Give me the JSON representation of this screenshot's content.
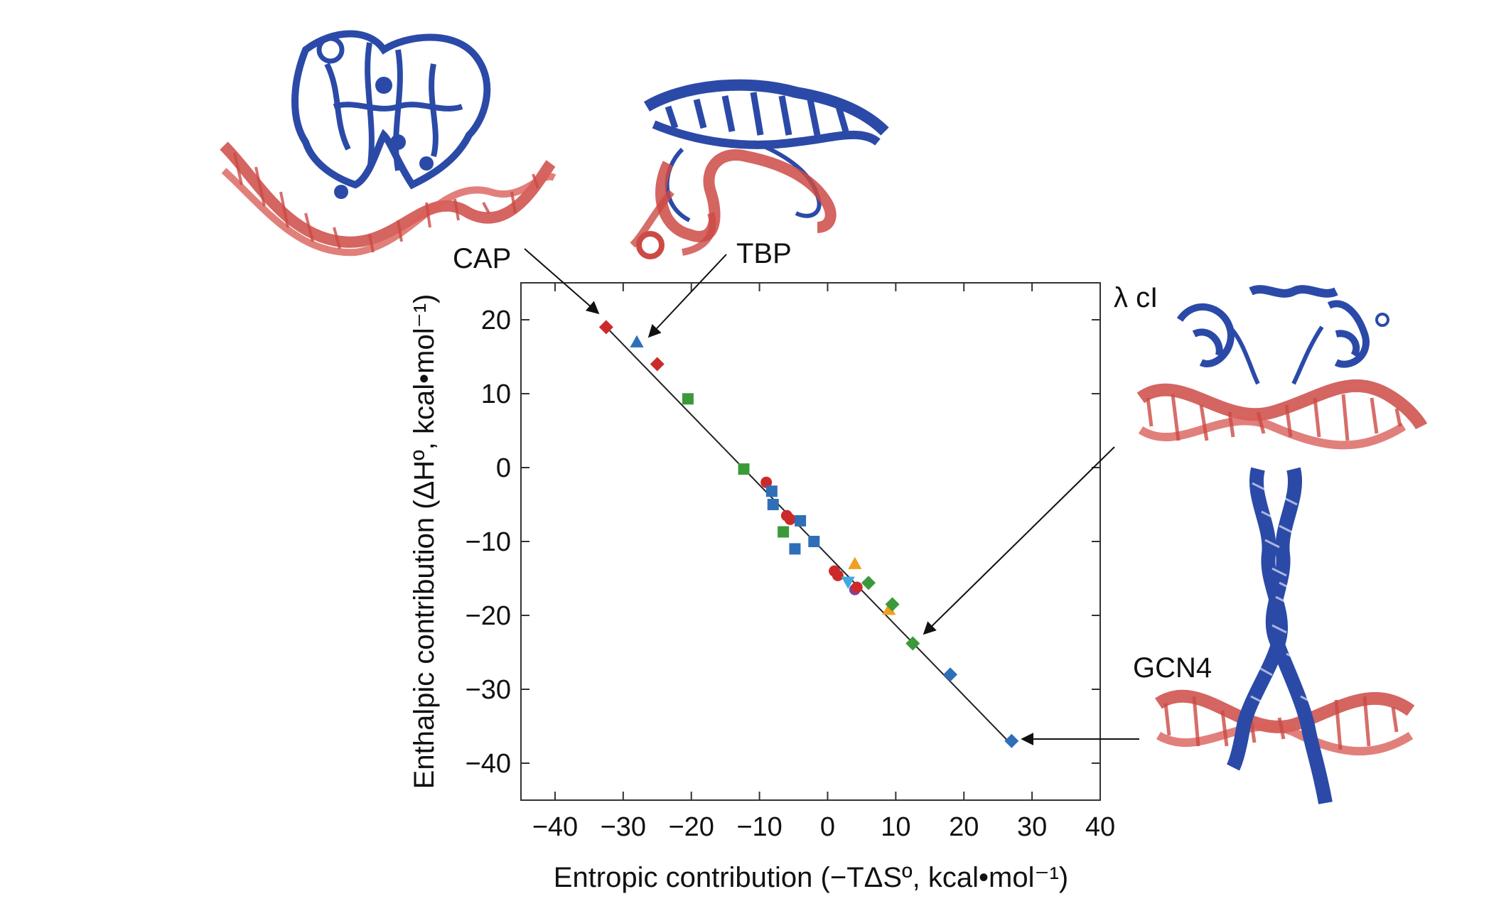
{
  "chart_data": {
    "type": "scatter",
    "title": "",
    "xlabel": "Entropic contribution (−TΔSº, kcal•mol⁻¹)",
    "ylabel": "Enthalpic contribution (ΔHº, kcal•mol⁻¹)",
    "xlim": [
      -45,
      40
    ],
    "ylim": [
      -45,
      25
    ],
    "xticks": [
      -40,
      -30,
      -20,
      -10,
      0,
      10,
      20,
      30,
      40
    ],
    "yticks": [
      20,
      10,
      0,
      -10,
      -20,
      -30,
      -40
    ],
    "xtick_labels": [
      "−40",
      "−30",
      "−20",
      "−10",
      "0",
      "10",
      "20",
      "30",
      "40"
    ],
    "ytick_labels": [
      "20",
      "10",
      "0",
      "−10",
      "−20",
      "−30",
      "−40"
    ],
    "grid": false,
    "fit_line": {
      "x": [
        -33,
        27
      ],
      "y": [
        19.5,
        -37.5
      ]
    },
    "colors": {
      "red": "#cc2a2a",
      "blue": "#2f6fb8",
      "green": "#3a9a3a",
      "orange": "#f0a020",
      "lightblue": "#3fa9e0",
      "purple": "#7f3fa0"
    },
    "points": [
      {
        "x": -32.5,
        "y": 19.0,
        "shape": "diamond",
        "color": "red"
      },
      {
        "x": -28.0,
        "y": 17.0,
        "shape": "triangle",
        "color": "blue"
      },
      {
        "x": -25.0,
        "y": 14.0,
        "shape": "diamond",
        "color": "red"
      },
      {
        "x": -20.5,
        "y": 9.3,
        "shape": "square",
        "color": "green"
      },
      {
        "x": -12.3,
        "y": -0.2,
        "shape": "square",
        "color": "green"
      },
      {
        "x": -9.0,
        "y": -2.0,
        "shape": "circle",
        "color": "red"
      },
      {
        "x": -8.2,
        "y": -3.2,
        "shape": "square",
        "color": "blue"
      },
      {
        "x": -8.0,
        "y": -5.0,
        "shape": "square",
        "color": "blue"
      },
      {
        "x": -6.0,
        "y": -6.5,
        "shape": "circle",
        "color": "red"
      },
      {
        "x": -5.5,
        "y": -7.0,
        "shape": "circle",
        "color": "red"
      },
      {
        "x": -4.0,
        "y": -7.2,
        "shape": "square",
        "color": "blue"
      },
      {
        "x": -6.5,
        "y": -8.7,
        "shape": "square",
        "color": "green"
      },
      {
        "x": -2.0,
        "y": -10.0,
        "shape": "square",
        "color": "blue"
      },
      {
        "x": -4.8,
        "y": -11.0,
        "shape": "square",
        "color": "blue"
      },
      {
        "x": 1.0,
        "y": -14.0,
        "shape": "circle",
        "color": "red"
      },
      {
        "x": 1.5,
        "y": -14.6,
        "shape": "circle",
        "color": "red"
      },
      {
        "x": 4.0,
        "y": -13.0,
        "shape": "triangle",
        "color": "orange"
      },
      {
        "x": 3.0,
        "y": -15.5,
        "shape": "triangle-down",
        "color": "lightblue"
      },
      {
        "x": 4.0,
        "y": -16.5,
        "shape": "circle",
        "color": "purple"
      },
      {
        "x": 4.3,
        "y": -16.2,
        "shape": "circle",
        "color": "red"
      },
      {
        "x": 6.0,
        "y": -15.6,
        "shape": "diamond",
        "color": "green"
      },
      {
        "x": 9.0,
        "y": -19.2,
        "shape": "triangle",
        "color": "orange"
      },
      {
        "x": 9.5,
        "y": -18.5,
        "shape": "diamond",
        "color": "green"
      },
      {
        "x": 12.5,
        "y": -23.8,
        "shape": "diamond",
        "color": "green"
      },
      {
        "x": 18.0,
        "y": -28.0,
        "shape": "diamond",
        "color": "blue"
      },
      {
        "x": 27.0,
        "y": -37.0,
        "shape": "diamond",
        "color": "blue"
      }
    ],
    "annotations": [
      {
        "text": "CAP",
        "points_to": {
          "x": -32.5,
          "y": 19.0
        }
      },
      {
        "text": "TBP",
        "points_to": {
          "x": -28.0,
          "y": 17.0
        }
      },
      {
        "text": "λ cI",
        "points_to": {
          "x": 14.0,
          "y": -22.0
        }
      },
      {
        "text": "GCN4",
        "points_to": {
          "x": 27.0,
          "y": -37.0
        }
      }
    ]
  },
  "structures": {
    "protein_color": "#2b4aa8",
    "dna_color": "#cc4a45"
  }
}
